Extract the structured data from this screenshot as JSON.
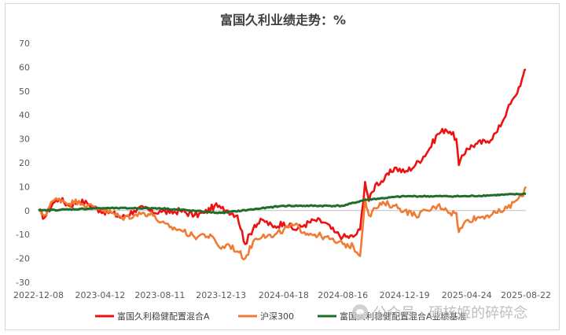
{
  "chart_data": {
    "type": "line",
    "title": "富国久利业绩走势：%",
    "xlabel": "",
    "ylabel": "",
    "ylim": [
      -30,
      70
    ],
    "yticks": [
      -30,
      -20,
      -10,
      0,
      10,
      20,
      30,
      40,
      50,
      60,
      70
    ],
    "x_tick_labels": [
      "2022-12-08",
      "2023-04-12",
      "2023-08-11",
      "2023-12-13",
      "2024-04-18",
      "2024-08-16",
      "2024-12-19",
      "2025-04-24",
      "2025-08-22"
    ],
    "x_range": [
      "2022-12-08",
      "2025-08-22"
    ],
    "grid": false,
    "legend_position": "bottom",
    "series": [
      {
        "name": "富国久利稳健配置混合A",
        "color": "#ee1111",
        "x": [
          "2022-12-08",
          "2022-12-20",
          "2023-01-06",
          "2023-01-19",
          "2023-02-08",
          "2023-02-28",
          "2023-03-17",
          "2023-04-12",
          "2023-05-05",
          "2023-05-26",
          "2023-06-20",
          "2023-07-10",
          "2023-07-31",
          "2023-08-11",
          "2023-08-31",
          "2023-09-21",
          "2023-10-20",
          "2023-11-09",
          "2023-11-30",
          "2023-12-13",
          "2023-12-27",
          "2024-01-15",
          "2024-01-31",
          "2024-02-19",
          "2024-03-08",
          "2024-03-28",
          "2024-04-18",
          "2024-05-10",
          "2024-05-30",
          "2024-06-20",
          "2024-07-10",
          "2024-07-30",
          "2024-08-16",
          "2024-09-06",
          "2024-09-20",
          "2024-09-30",
          "2024-10-08",
          "2024-10-21",
          "2024-11-08",
          "2024-11-29",
          "2024-12-19",
          "2025-01-10",
          "2025-02-05",
          "2025-02-24",
          "2025-03-12",
          "2025-03-21",
          "2025-04-03",
          "2025-04-08",
          "2025-04-24",
          "2025-05-15",
          "2025-06-05",
          "2025-06-25",
          "2025-07-15",
          "2025-08-01",
          "2025-08-14",
          "2025-08-22"
        ],
        "values": [
          0,
          -3,
          3,
          5,
          2,
          4,
          3,
          0,
          -1,
          -3,
          0,
          1,
          -1,
          0,
          -1,
          0,
          -2,
          -1,
          2,
          1,
          0,
          -2,
          -14,
          -6,
          -4,
          -7,
          -5,
          -8,
          -6,
          -4,
          -5,
          -9,
          -11,
          -11,
          -8,
          12,
          4,
          11,
          13,
          18,
          16,
          19,
          25,
          32,
          34,
          33,
          30,
          19,
          26,
          28,
          29,
          33,
          42,
          48,
          55,
          59
        ]
      },
      {
        "name": "沪深300",
        "color": "#f07b35",
        "x": [
          "2022-12-08",
          "2022-12-20",
          "2023-01-06",
          "2023-01-19",
          "2023-02-08",
          "2023-02-28",
          "2023-03-17",
          "2023-04-12",
          "2023-05-05",
          "2023-05-26",
          "2023-06-20",
          "2023-07-10",
          "2023-07-31",
          "2023-08-11",
          "2023-08-31",
          "2023-09-21",
          "2023-10-20",
          "2023-11-09",
          "2023-11-30",
          "2023-12-13",
          "2023-12-27",
          "2024-01-15",
          "2024-01-31",
          "2024-02-19",
          "2024-03-08",
          "2024-03-28",
          "2024-04-18",
          "2024-05-10",
          "2024-05-30",
          "2024-06-20",
          "2024-07-10",
          "2024-07-30",
          "2024-08-16",
          "2024-09-06",
          "2024-09-20",
          "2024-09-30",
          "2024-10-08",
          "2024-10-21",
          "2024-11-08",
          "2024-11-29",
          "2024-12-19",
          "2025-01-10",
          "2025-02-05",
          "2025-02-24",
          "2025-03-12",
          "2025-03-21",
          "2025-04-03",
          "2025-04-08",
          "2025-04-24",
          "2025-05-15",
          "2025-06-05",
          "2025-06-25",
          "2025-07-15",
          "2025-08-01",
          "2025-08-14",
          "2025-08-22"
        ],
        "values": [
          0,
          -2,
          4,
          5,
          3,
          4,
          2,
          1,
          -1,
          -3,
          -2,
          -1,
          -2,
          -5,
          -7,
          -8,
          -11,
          -10,
          -12,
          -16,
          -14,
          -17,
          -20,
          -12,
          -10,
          -11,
          -8,
          -6,
          -9,
          -10,
          -11,
          -13,
          -14,
          -15,
          -19,
          5,
          -2,
          1,
          3,
          2,
          0,
          -2,
          0,
          2,
          1,
          -1,
          -1,
          -9,
          -4,
          -3,
          -2,
          -1,
          1,
          4,
          6,
          10
        ]
      },
      {
        "name": "富国久利稳健配置混合A业绩基准",
        "color": "#1e6e2a",
        "x": [
          "2022-12-08",
          "2023-04-12",
          "2023-08-11",
          "2023-12-13",
          "2024-04-18",
          "2024-08-16",
          "2024-09-30",
          "2024-12-19",
          "2025-04-24",
          "2025-08-22"
        ],
        "values": [
          0,
          1,
          1,
          -1,
          2,
          2,
          4.5,
          6,
          6,
          7
        ]
      }
    ]
  }
}
